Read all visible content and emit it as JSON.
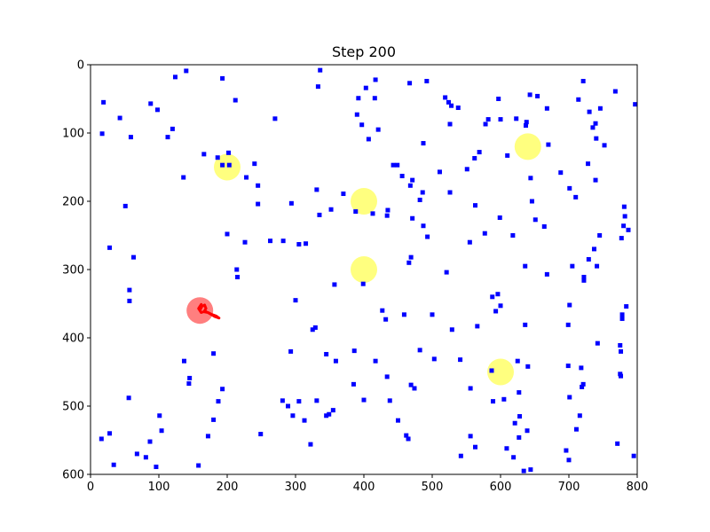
{
  "chart_data": {
    "type": "scatter",
    "title": "Step 200",
    "xlabel": "",
    "ylabel": "",
    "xlim": [
      0,
      800
    ],
    "ylim": [
      600,
      0
    ],
    "y_inverted": true,
    "grid": false,
    "legend": "none",
    "x_ticks": [
      0,
      100,
      200,
      300,
      400,
      500,
      600,
      700,
      800
    ],
    "y_ticks": [
      0,
      100,
      200,
      300,
      400,
      500,
      600
    ],
    "colors": {
      "points": "#0000ff",
      "goals": "#ffff00",
      "agent": "#ff0000",
      "trail": "#ff0000",
      "axes": "#000000"
    },
    "goals": [
      {
        "x": 200,
        "y": 150
      },
      {
        "x": 400,
        "y": 200
      },
      {
        "x": 640,
        "y": 120
      },
      {
        "x": 400,
        "y": 300
      },
      {
        "x": 600,
        "y": 450
      }
    ],
    "agent": {
      "x": 160,
      "y": 360
    },
    "trail": [
      [
        160,
        360
      ],
      [
        163,
        354
      ],
      [
        167,
        352
      ],
      [
        169,
        357
      ],
      [
        166,
        362
      ],
      [
        172,
        363
      ],
      [
        178,
        366
      ],
      [
        184,
        368
      ],
      [
        188,
        371
      ],
      [
        182,
        369
      ],
      [
        175,
        365
      ],
      [
        168,
        361
      ],
      [
        162,
        363
      ],
      [
        158,
        357
      ],
      [
        162,
        351
      ]
    ],
    "points": [
      [
        19,
        55
      ],
      [
        17,
        101
      ],
      [
        43,
        78
      ],
      [
        59,
        106
      ],
      [
        88,
        57
      ],
      [
        120,
        94
      ],
      [
        113,
        106
      ],
      [
        98,
        66
      ],
      [
        124,
        18
      ],
      [
        140,
        9
      ],
      [
        136,
        165
      ],
      [
        166,
        131
      ],
      [
        186,
        136
      ],
      [
        193,
        147
      ],
      [
        193,
        20
      ],
      [
        212,
        52
      ],
      [
        203,
        147
      ],
      [
        202,
        129
      ],
      [
        270,
        79
      ],
      [
        240,
        145
      ],
      [
        245,
        177
      ],
      [
        245,
        204
      ],
      [
        228,
        165
      ],
      [
        336,
        8
      ],
      [
        333,
        32
      ],
      [
        331,
        183
      ],
      [
        352,
        212
      ],
      [
        335,
        220
      ],
      [
        417,
        22
      ],
      [
        403,
        34
      ],
      [
        467,
        27
      ],
      [
        416,
        49
      ],
      [
        392,
        49
      ],
      [
        390,
        73
      ],
      [
        397,
        88
      ],
      [
        421,
        95
      ],
      [
        407,
        109
      ],
      [
        443,
        147
      ],
      [
        449,
        147
      ],
      [
        456,
        163
      ],
      [
        471,
        169
      ],
      [
        486,
        187
      ],
      [
        487,
        115
      ],
      [
        492,
        24
      ],
      [
        511,
        157
      ],
      [
        519,
        48
      ],
      [
        524,
        55
      ],
      [
        526,
        87
      ],
      [
        528,
        60
      ],
      [
        538,
        63
      ],
      [
        526,
        187
      ],
      [
        551,
        153
      ],
      [
        562,
        137
      ],
      [
        569,
        128
      ],
      [
        578,
        87
      ],
      [
        582,
        80
      ],
      [
        597,
        50
      ],
      [
        600,
        80
      ],
      [
        623,
        79
      ],
      [
        637,
        89
      ],
      [
        638,
        84
      ],
      [
        643,
        44
      ],
      [
        654,
        46
      ],
      [
        668,
        64
      ],
      [
        688,
        158
      ],
      [
        721,
        24
      ],
      [
        714,
        51
      ],
      [
        735,
        92
      ],
      [
        739,
        86
      ],
      [
        740,
        108
      ],
      [
        746,
        64
      ],
      [
        752,
        118
      ],
      [
        728,
        145
      ],
      [
        730,
        69
      ],
      [
        768,
        39
      ],
      [
        797,
        58
      ],
      [
        610,
        133
      ],
      [
        644,
        166
      ],
      [
        670,
        117
      ],
      [
        739,
        169
      ],
      [
        710,
        194
      ],
      [
        599,
        224
      ],
      [
        646,
        200
      ],
      [
        664,
        237
      ],
      [
        701,
        181
      ],
      [
        781,
        208
      ],
      [
        782,
        222
      ],
      [
        780,
        236
      ],
      [
        787,
        242
      ],
      [
        777,
        254
      ],
      [
        745,
        250
      ],
      [
        737,
        270
      ],
      [
        741,
        295
      ],
      [
        729,
        285
      ],
      [
        722,
        316
      ],
      [
        722,
        311
      ],
      [
        705,
        295
      ],
      [
        668,
        307
      ],
      [
        636,
        295
      ],
      [
        618,
        250
      ],
      [
        588,
        340
      ],
      [
        596,
        336
      ],
      [
        600,
        353
      ],
      [
        651,
        227
      ],
      [
        434,
        221
      ],
      [
        435,
        213
      ],
      [
        388,
        215
      ],
      [
        370,
        189
      ],
      [
        413,
        218
      ],
      [
        468,
        177
      ],
      [
        471,
        225
      ],
      [
        487,
        236
      ],
      [
        482,
        198
      ],
      [
        493,
        252
      ],
      [
        466,
        290
      ],
      [
        469,
        282
      ],
      [
        521,
        304
      ],
      [
        555,
        260
      ],
      [
        577,
        247
      ],
      [
        563,
        206
      ],
      [
        51,
        207
      ],
      [
        28,
        268
      ],
      [
        63,
        282
      ],
      [
        57,
        330
      ],
      [
        57,
        346
      ],
      [
        200,
        248
      ],
      [
        214,
        300
      ],
      [
        215,
        311
      ],
      [
        226,
        260
      ],
      [
        263,
        258
      ],
      [
        282,
        258
      ],
      [
        294,
        203
      ],
      [
        305,
        263
      ],
      [
        300,
        345
      ],
      [
        315,
        262
      ],
      [
        357,
        322
      ],
      [
        399,
        321
      ],
      [
        427,
        360
      ],
      [
        432,
        373
      ],
      [
        459,
        366
      ],
      [
        500,
        366
      ],
      [
        529,
        388
      ],
      [
        566,
        383
      ],
      [
        593,
        361
      ],
      [
        636,
        381
      ],
      [
        701,
        352
      ],
      [
        778,
        366
      ],
      [
        778,
        372
      ],
      [
        784,
        354
      ],
      [
        329,
        385
      ],
      [
        293,
        420
      ],
      [
        325,
        388
      ],
      [
        345,
        424
      ],
      [
        359,
        434
      ],
      [
        386,
        419
      ],
      [
        417,
        434
      ],
      [
        434,
        457
      ],
      [
        469,
        469
      ],
      [
        474,
        474
      ],
      [
        482,
        418
      ],
      [
        503,
        431
      ],
      [
        541,
        432
      ],
      [
        556,
        474
      ],
      [
        587,
        448
      ],
      [
        625,
        434
      ],
      [
        640,
        442
      ],
      [
        718,
        444
      ],
      [
        699,
        441
      ],
      [
        776,
        420
      ],
      [
        775,
        411
      ],
      [
        742,
        408
      ],
      [
        721,
        468
      ],
      [
        719,
        472
      ],
      [
        701,
        487
      ],
      [
        776,
        456
      ],
      [
        775,
        453
      ],
      [
        699,
        381
      ],
      [
        589,
        493
      ],
      [
        605,
        490
      ],
      [
        627,
        480
      ],
      [
        628,
        515
      ],
      [
        621,
        525
      ],
      [
        627,
        546
      ],
      [
        634,
        595
      ],
      [
        639,
        536
      ],
      [
        644,
        593
      ],
      [
        609,
        562
      ],
      [
        619,
        575
      ],
      [
        696,
        565
      ],
      [
        700,
        579
      ],
      [
        771,
        555
      ],
      [
        711,
        534
      ],
      [
        795,
        573
      ],
      [
        716,
        514
      ],
      [
        180,
        423
      ],
      [
        193,
        475
      ],
      [
        180,
        520
      ],
      [
        144,
        467
      ],
      [
        145,
        459
      ],
      [
        137,
        434
      ],
      [
        187,
        493
      ],
      [
        172,
        544
      ],
      [
        158,
        587
      ],
      [
        101,
        514
      ],
      [
        104,
        536
      ],
      [
        87,
        552
      ],
      [
        81,
        575
      ],
      [
        96,
        589
      ],
      [
        68,
        570
      ],
      [
        56,
        488
      ],
      [
        16,
        548
      ],
      [
        28,
        540
      ],
      [
        34,
        586
      ],
      [
        249,
        541
      ],
      [
        281,
        492
      ],
      [
        289,
        500
      ],
      [
        296,
        514
      ],
      [
        305,
        493
      ],
      [
        313,
        521
      ],
      [
        331,
        492
      ],
      [
        355,
        506
      ],
      [
        349,
        512
      ],
      [
        345,
        514
      ],
      [
        322,
        556
      ],
      [
        385,
        468
      ],
      [
        400,
        491
      ],
      [
        438,
        492
      ],
      [
        450,
        521
      ],
      [
        462,
        543
      ],
      [
        465,
        548
      ],
      [
        556,
        544
      ],
      [
        563,
        560
      ],
      [
        542,
        573
      ]
    ]
  }
}
